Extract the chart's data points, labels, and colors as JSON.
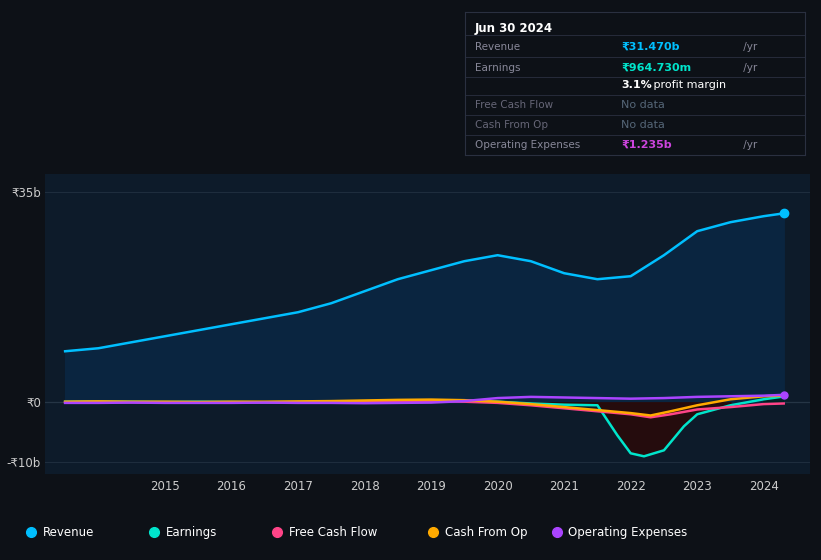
{
  "bg_color": "#0d1117",
  "plot_bg_color": "#0d1b2a",
  "legend": [
    {
      "label": "Revenue",
      "color": "#00bfff"
    },
    {
      "label": "Earnings",
      "color": "#00e5cc"
    },
    {
      "label": "Free Cash Flow",
      "color": "#ff4488"
    },
    {
      "label": "Cash From Op",
      "color": "#ffaa00"
    },
    {
      "label": "Operating Expenses",
      "color": "#aa44ff"
    }
  ],
  "revenue_x": [
    2013.5,
    2014.0,
    2014.5,
    2015.0,
    2015.5,
    2016.0,
    2016.5,
    2017.0,
    2017.5,
    2018.0,
    2018.5,
    2019.0,
    2019.5,
    2020.0,
    2020.5,
    2021.0,
    2021.5,
    2022.0,
    2022.5,
    2023.0,
    2023.5,
    2024.0,
    2024.3
  ],
  "revenue_y": [
    8500000000.0,
    9000000000.0,
    10000000000.0,
    11000000000.0,
    12000000000.0,
    13000000000.0,
    14000000000.0,
    15000000000.0,
    16500000000.0,
    18500000000.0,
    20500000000.0,
    22000000000.0,
    23500000000.0,
    24500000000.0,
    23500000000.0,
    21500000000.0,
    20500000000.0,
    21000000000.0,
    24500000000.0,
    28500000000.0,
    30000000000.0,
    31000000000.0,
    31470000000.0
  ],
  "earnings_x": [
    2013.5,
    2014.0,
    2014.5,
    2015.0,
    2015.5,
    2016.0,
    2016.5,
    2017.0,
    2017.5,
    2018.0,
    2018.5,
    2019.0,
    2019.5,
    2020.0,
    2020.5,
    2021.0,
    2021.5,
    2021.8,
    2022.0,
    2022.2,
    2022.5,
    2022.8,
    2023.0,
    2023.5,
    2024.0,
    2024.3
  ],
  "earnings_y": [
    100000000.0,
    150000000.0,
    100000000.0,
    50000000.0,
    100000000.0,
    50000000.0,
    0.0,
    50000000.0,
    100000000.0,
    150000000.0,
    200000000.0,
    300000000.0,
    200000000.0,
    100000000.0,
    -200000000.0,
    -400000000.0,
    -500000000.0,
    -5500000000.0,
    -8500000000.0,
    -9000000000.0,
    -8000000000.0,
    -4000000000.0,
    -2000000000.0,
    -500000000.0,
    500000000.0,
    965000000.0
  ],
  "fcf_x": [
    2013.5,
    2014.0,
    2014.5,
    2015.0,
    2015.5,
    2016.0,
    2016.5,
    2017.0,
    2017.5,
    2018.0,
    2018.5,
    2019.0,
    2019.5,
    2020.0,
    2020.5,
    2021.0,
    2021.5,
    2022.0,
    2022.3,
    2022.6,
    2023.0,
    2023.5,
    2024.0,
    2024.3
  ],
  "fcf_y": [
    0.0,
    50000000.0,
    0.0,
    -50000000.0,
    0.0,
    -50000000.0,
    0.0,
    0.0,
    50000000.0,
    100000000.0,
    150000000.0,
    200000000.0,
    100000000.0,
    -100000000.0,
    -500000000.0,
    -1000000000.0,
    -1500000000.0,
    -2000000000.0,
    -2500000000.0,
    -2000000000.0,
    -1200000000.0,
    -800000000.0,
    -300000000.0,
    -200000000.0
  ],
  "cop_x": [
    2013.5,
    2014.0,
    2014.5,
    2015.0,
    2015.5,
    2016.0,
    2016.5,
    2017.0,
    2017.5,
    2018.0,
    2018.5,
    2019.0,
    2019.5,
    2020.0,
    2020.5,
    2021.0,
    2021.5,
    2022.0,
    2022.3,
    2022.6,
    2023.0,
    2023.5,
    2024.0,
    2024.3
  ],
  "cop_y": [
    100000000.0,
    150000000.0,
    100000000.0,
    100000000.0,
    50000000.0,
    100000000.0,
    100000000.0,
    150000000.0,
    200000000.0,
    300000000.0,
    400000000.0,
    450000000.0,
    350000000.0,
    100000000.0,
    -300000000.0,
    -800000000.0,
    -1300000000.0,
    -1800000000.0,
    -2200000000.0,
    -1500000000.0,
    -500000000.0,
    500000000.0,
    1000000000.0,
    1100000000.0
  ],
  "opex_x": [
    2013.5,
    2014.0,
    2014.5,
    2015.0,
    2015.5,
    2016.0,
    2016.5,
    2017.0,
    2017.5,
    2018.0,
    2018.5,
    2019.0,
    2019.5,
    2020.0,
    2020.5,
    2021.0,
    2021.5,
    2022.0,
    2022.5,
    2023.0,
    2023.5,
    2024.0,
    2024.3
  ],
  "opex_y": [
    -100000000.0,
    -100000000.0,
    -50000000.0,
    -100000000.0,
    -100000000.0,
    -100000000.0,
    -50000000.0,
    -100000000.0,
    -100000000.0,
    -150000000.0,
    -100000000.0,
    -50000000.0,
    200000000.0,
    700000000.0,
    900000000.0,
    800000000.0,
    700000000.0,
    600000000.0,
    700000000.0,
    900000000.0,
    1000000000.0,
    1100000000.0,
    1235000000.0
  ],
  "xlim": [
    2013.2,
    2024.7
  ],
  "ylim": [
    -12000000000.0,
    38000000000.0
  ],
  "y_ticks": [
    35000000000.0,
    0,
    -10000000000.0
  ],
  "y_tick_labels": [
    "₹35b",
    "₹0",
    "-₹10b"
  ],
  "x_ticks": [
    2015,
    2016,
    2017,
    2018,
    2019,
    2020,
    2021,
    2022,
    2023,
    2024
  ],
  "x_tick_labels": [
    "2015",
    "2016",
    "2017",
    "2018",
    "2019",
    "2020",
    "2021",
    "2022",
    "2023",
    "2024"
  ],
  "info_box": {
    "title": "Jun 30 2024",
    "rows": [
      {
        "label": "Revenue",
        "val": "₹31.470b",
        "suffix": " /yr",
        "val_color": "#00bfff",
        "dim": false
      },
      {
        "label": "Earnings",
        "val": "₹964.730m",
        "suffix": " /yr",
        "val_color": "#00e5cc",
        "dim": false
      },
      {
        "label": "",
        "val": "3.1%",
        "suffix": " profit margin",
        "val_color": "#ffffff",
        "bold": true,
        "dim": false
      },
      {
        "label": "Free Cash Flow",
        "val": "No data",
        "suffix": "",
        "val_color": "#556677",
        "dim": true
      },
      {
        "label": "Cash From Op",
        "val": "No data",
        "suffix": "",
        "val_color": "#556677",
        "dim": true
      },
      {
        "label": "Operating Expenses",
        "val": "₹1.235b",
        "suffix": " /yr",
        "val_color": "#cc44dd",
        "dim": false
      }
    ]
  }
}
